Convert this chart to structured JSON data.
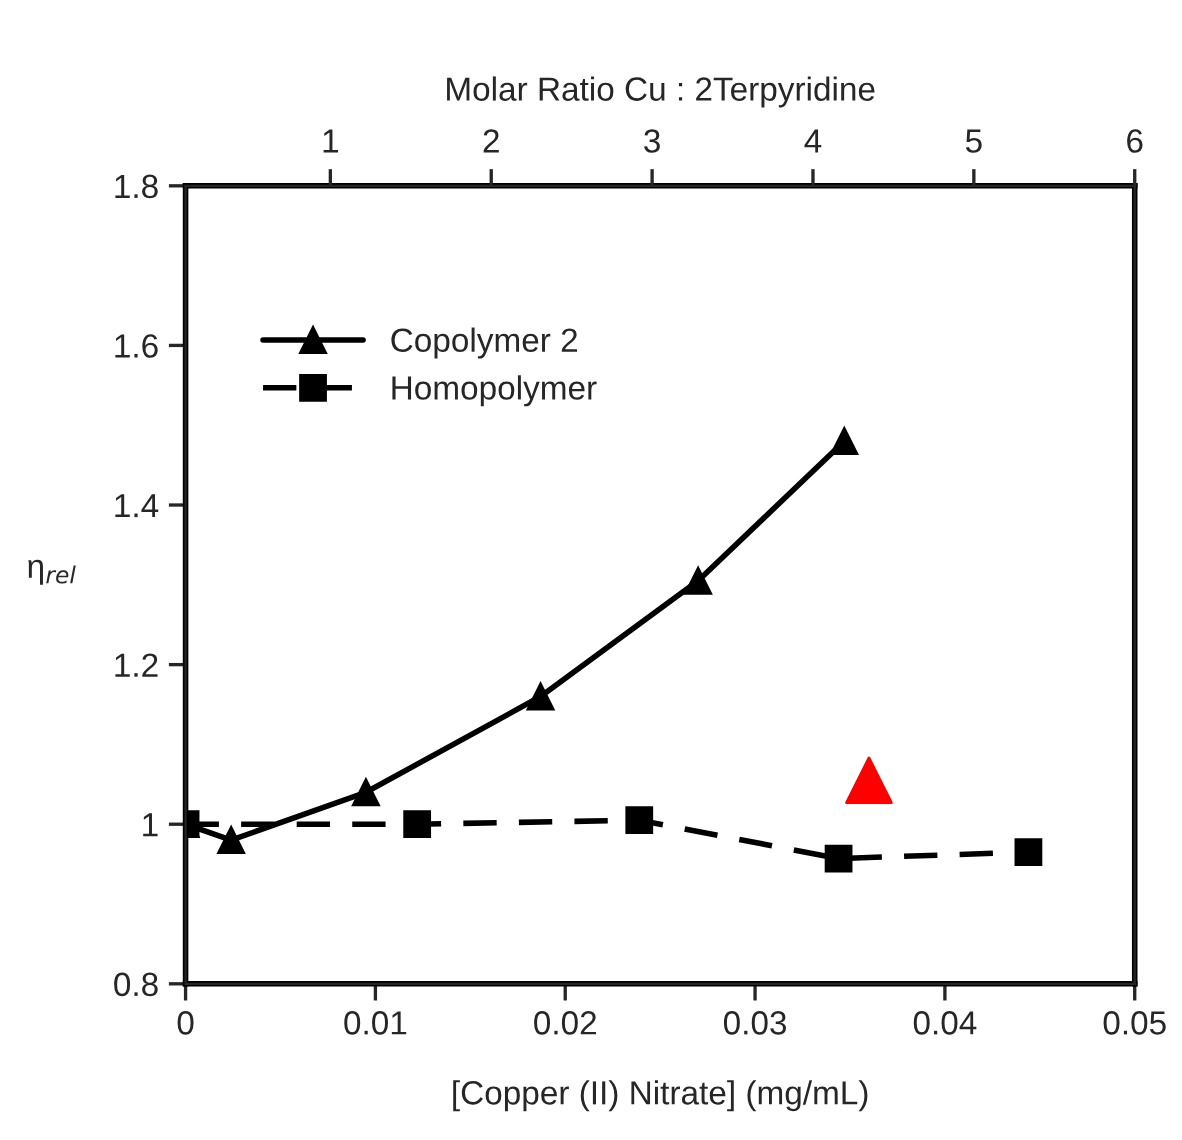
{
  "chart_data": {
    "type": "line",
    "xlabel": "[Copper (II) Nitrate] (mg/mL)",
    "ylabel": "η$_{rel}$",
    "x2label": "Molar Ratio Cu : 2Terpyridine",
    "xlim": [
      0,
      0.05
    ],
    "xticks": [
      0,
      0.01,
      0.02,
      0.03,
      0.04,
      0.05
    ],
    "ylim": [
      0.8,
      1.8
    ],
    "yticks": [
      0.8,
      1,
      1.2,
      1.4,
      1.6,
      1.8
    ],
    "x2lim": [
      0.1,
      6
    ],
    "x2ticks": [
      1,
      2,
      3,
      4,
      5,
      6
    ],
    "grid": false,
    "legend": "top left",
    "series": [
      {
        "name": "Copolymer 2",
        "color": "#000000",
        "marker": "triangle",
        "line_style": "solid",
        "x": [
          0,
          0.0024,
          0.0095,
          0.0187,
          0.027,
          0.0347
        ],
        "values": [
          1.0,
          0.98,
          1.04,
          1.16,
          1.305,
          1.48
        ]
      },
      {
        "name": "Homopolymer",
        "color": "#000000",
        "marker": "square",
        "line_style": "dashed",
        "x": [
          0,
          0.0122,
          0.0239,
          0.0344,
          0.0444
        ],
        "values": [
          1.0,
          1.0,
          1.005,
          0.957,
          0.965
        ]
      },
      {
        "type": "scatter",
        "color": "#ff0000",
        "marker": "triangle",
        "x": [
          0.036
        ],
        "values": [
          1.055
        ]
      }
    ]
  }
}
